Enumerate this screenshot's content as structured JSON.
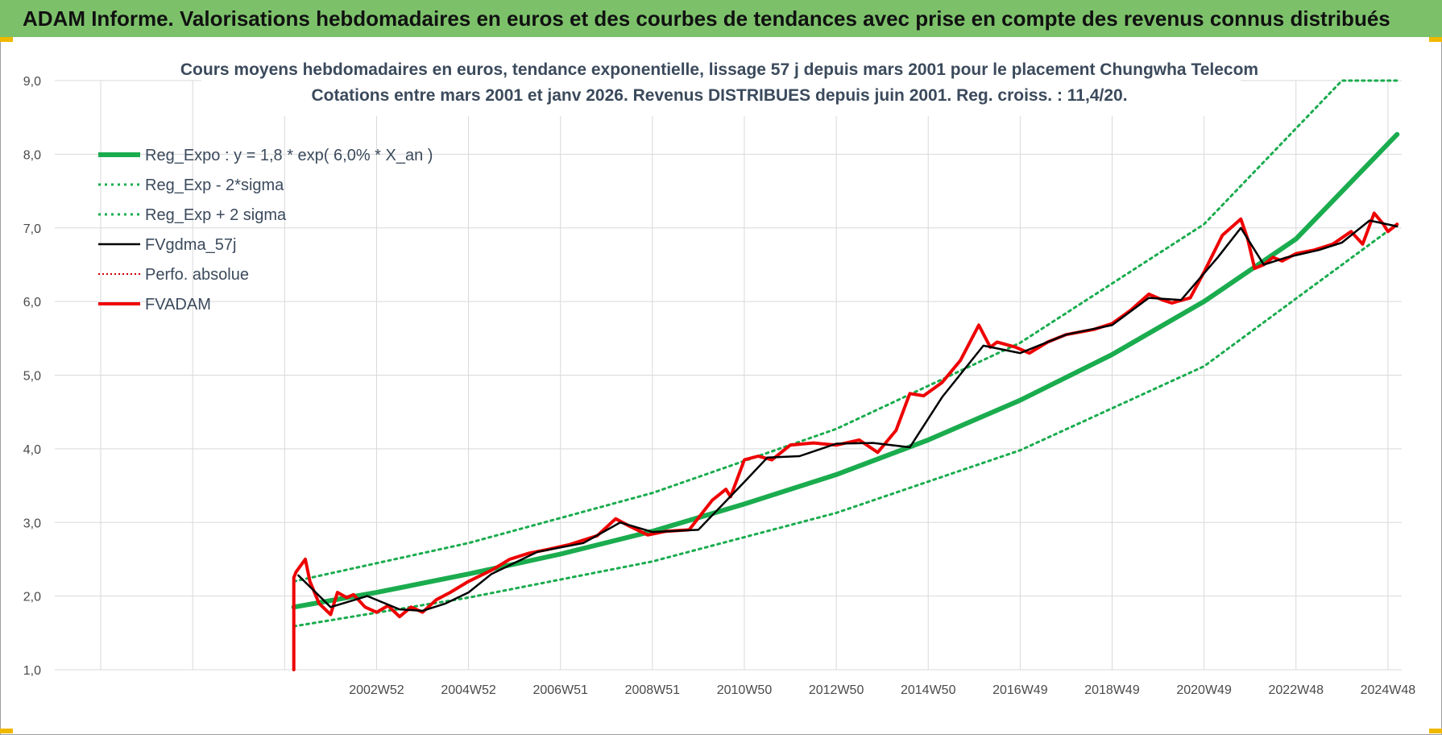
{
  "page": {
    "banner_title": "ADAM Informe. Valorisations hebdomadaires en euros et des courbes de tendances avec prise en compte des revenus connus distribués"
  },
  "colors": {
    "banner": "#7cc16a",
    "regression": "#1aac4e",
    "moving_average": "#000000",
    "fvadam": "#ee0000",
    "perfo": "#cc0000",
    "grid": "#d9d9d9"
  },
  "chart_data": {
    "type": "line",
    "title": "Cours moyens hebdomadaires en euros, tendance exponentielle, lissage 57 j depuis mars 2001 pour le placement Chungwha Telecom",
    "subtitle": "Cotations entre mars 2001 et janv 2026. Revenus DISTRIBUES depuis juin 2001. Reg. croiss. : 11,4/20.",
    "xlabel": "",
    "ylabel": "",
    "ylim": [
      1.0,
      9.0
    ],
    "xlim": [
      1996.0,
      2025.3
    ],
    "y_ticks": [
      "1,0",
      "2,0",
      "3,0",
      "4,0",
      "5,0",
      "6,0",
      "7,0",
      "8,0",
      "9,0"
    ],
    "x_tick_labels": [
      "2002W52",
      "2004W52",
      "2006W51",
      "2008W51",
      "2010W50",
      "2012W50",
      "2014W50",
      "2016W49",
      "2018W49",
      "2020W49",
      "2022W48",
      "2024W48"
    ],
    "grid": true,
    "legend_position": "top-left",
    "series": [
      {
        "name": "Reg_Expo : y = 1,8 * exp( 6,0% *  X_an )",
        "style": "solid-thick",
        "x": [
          2001.2,
          2003,
          2005,
          2007,
          2009,
          2011,
          2013,
          2015,
          2017,
          2019,
          2021,
          2023,
          2025.2
        ],
        "y": [
          1.85,
          2.05,
          2.3,
          2.57,
          2.88,
          3.25,
          3.65,
          4.12,
          4.66,
          5.28,
          6.0,
          6.85,
          8.27
        ]
      },
      {
        "name": "Reg_Exp - 2*sigma",
        "style": "dotted",
        "x": [
          2001.2,
          2005,
          2009,
          2013,
          2017,
          2021,
          2025.2
        ],
        "y": [
          1.59,
          1.98,
          2.47,
          3.13,
          3.98,
          5.12,
          7.05
        ]
      },
      {
        "name": "Reg_Exp + 2 sigma",
        "style": "dotted",
        "x": [
          2001.2,
          2005,
          2009,
          2013,
          2017,
          2021,
          2024.0,
          2025.2
        ],
        "y": [
          2.2,
          2.72,
          3.4,
          4.27,
          5.44,
          7.05,
          9.0,
          9.0
        ]
      },
      {
        "name": "FVgdma_57j",
        "style": "solid",
        "x": [
          2001.3,
          2002.0,
          2002.8,
          2003.5,
          2004.0,
          2004.5,
          2005.0,
          2005.5,
          2006.5,
          2007.5,
          2008.3,
          2009.0,
          2010.0,
          2011.0,
          2011.5,
          2012.2,
          2013.0,
          2013.8,
          2014.6,
          2015.3,
          2016.2,
          2017.0,
          2018.0,
          2019.0,
          2019.8,
          2020.5,
          2021.3,
          2021.8,
          2022.3,
          2022.8,
          2023.5,
          2024.0,
          2024.6,
          2025.2
        ],
        "y": [
          2.28,
          1.85,
          2.0,
          1.82,
          1.8,
          1.9,
          2.05,
          2.3,
          2.6,
          2.72,
          3.0,
          2.87,
          2.9,
          3.55,
          3.88,
          3.9,
          4.07,
          4.08,
          4.02,
          4.7,
          5.4,
          5.3,
          5.55,
          5.68,
          6.05,
          6.02,
          6.6,
          7.0,
          6.5,
          6.6,
          6.7,
          6.8,
          7.1,
          7.02
        ]
      },
      {
        "name": "Perfo. absolue",
        "style": "dotted"
      },
      {
        "name": "FVADAM",
        "style": "solid-thick",
        "x": [
          2001.2,
          2001.2,
          2001.25,
          2001.45,
          2001.55,
          2001.75,
          2002.0,
          2002.15,
          2002.35,
          2002.5,
          2002.75,
          2003.0,
          2003.25,
          2003.5,
          2003.75,
          2004.0,
          2004.3,
          2004.6,
          2005.0,
          2005.5,
          2005.9,
          2006.3,
          2006.7,
          2007.2,
          2007.8,
          2008.2,
          2008.5,
          2008.9,
          2009.3,
          2009.8,
          2010.3,
          2010.6,
          2010.7,
          2011.0,
          2011.3,
          2011.6,
          2012.0,
          2012.5,
          2013.0,
          2013.5,
          2013.9,
          2014.3,
          2014.6,
          2014.9,
          2015.3,
          2015.7,
          2016.1,
          2016.35,
          2016.5,
          2016.9,
          2017.2,
          2017.6,
          2018.0,
          2018.6,
          2019.0,
          2019.4,
          2019.8,
          2020.1,
          2020.3,
          2020.7,
          2021.0,
          2021.4,
          2021.8,
          2021.95,
          2022.1,
          2022.3,
          2022.5,
          2022.7,
          2023.0,
          2023.4,
          2023.8,
          2024.2,
          2024.45,
          2024.7,
          2024.9,
          2025.0,
          2025.2
        ],
        "y": [
          1.0,
          2.25,
          2.33,
          2.5,
          2.2,
          1.9,
          1.75,
          2.05,
          1.98,
          2.02,
          1.85,
          1.78,
          1.87,
          1.72,
          1.85,
          1.78,
          1.95,
          2.05,
          2.2,
          2.35,
          2.5,
          2.58,
          2.63,
          2.7,
          2.82,
          3.05,
          2.95,
          2.83,
          2.88,
          2.9,
          3.3,
          3.45,
          3.35,
          3.85,
          3.9,
          3.85,
          4.05,
          4.08,
          4.05,
          4.12,
          3.95,
          4.25,
          4.75,
          4.72,
          4.9,
          5.2,
          5.68,
          5.38,
          5.45,
          5.38,
          5.3,
          5.45,
          5.55,
          5.62,
          5.7,
          5.88,
          6.1,
          6.02,
          5.98,
          6.05,
          6.4,
          6.9,
          7.12,
          6.85,
          6.45,
          6.5,
          6.6,
          6.55,
          6.65,
          6.7,
          6.78,
          6.95,
          6.78,
          7.2,
          7.05,
          6.95,
          7.05
        ]
      }
    ]
  }
}
